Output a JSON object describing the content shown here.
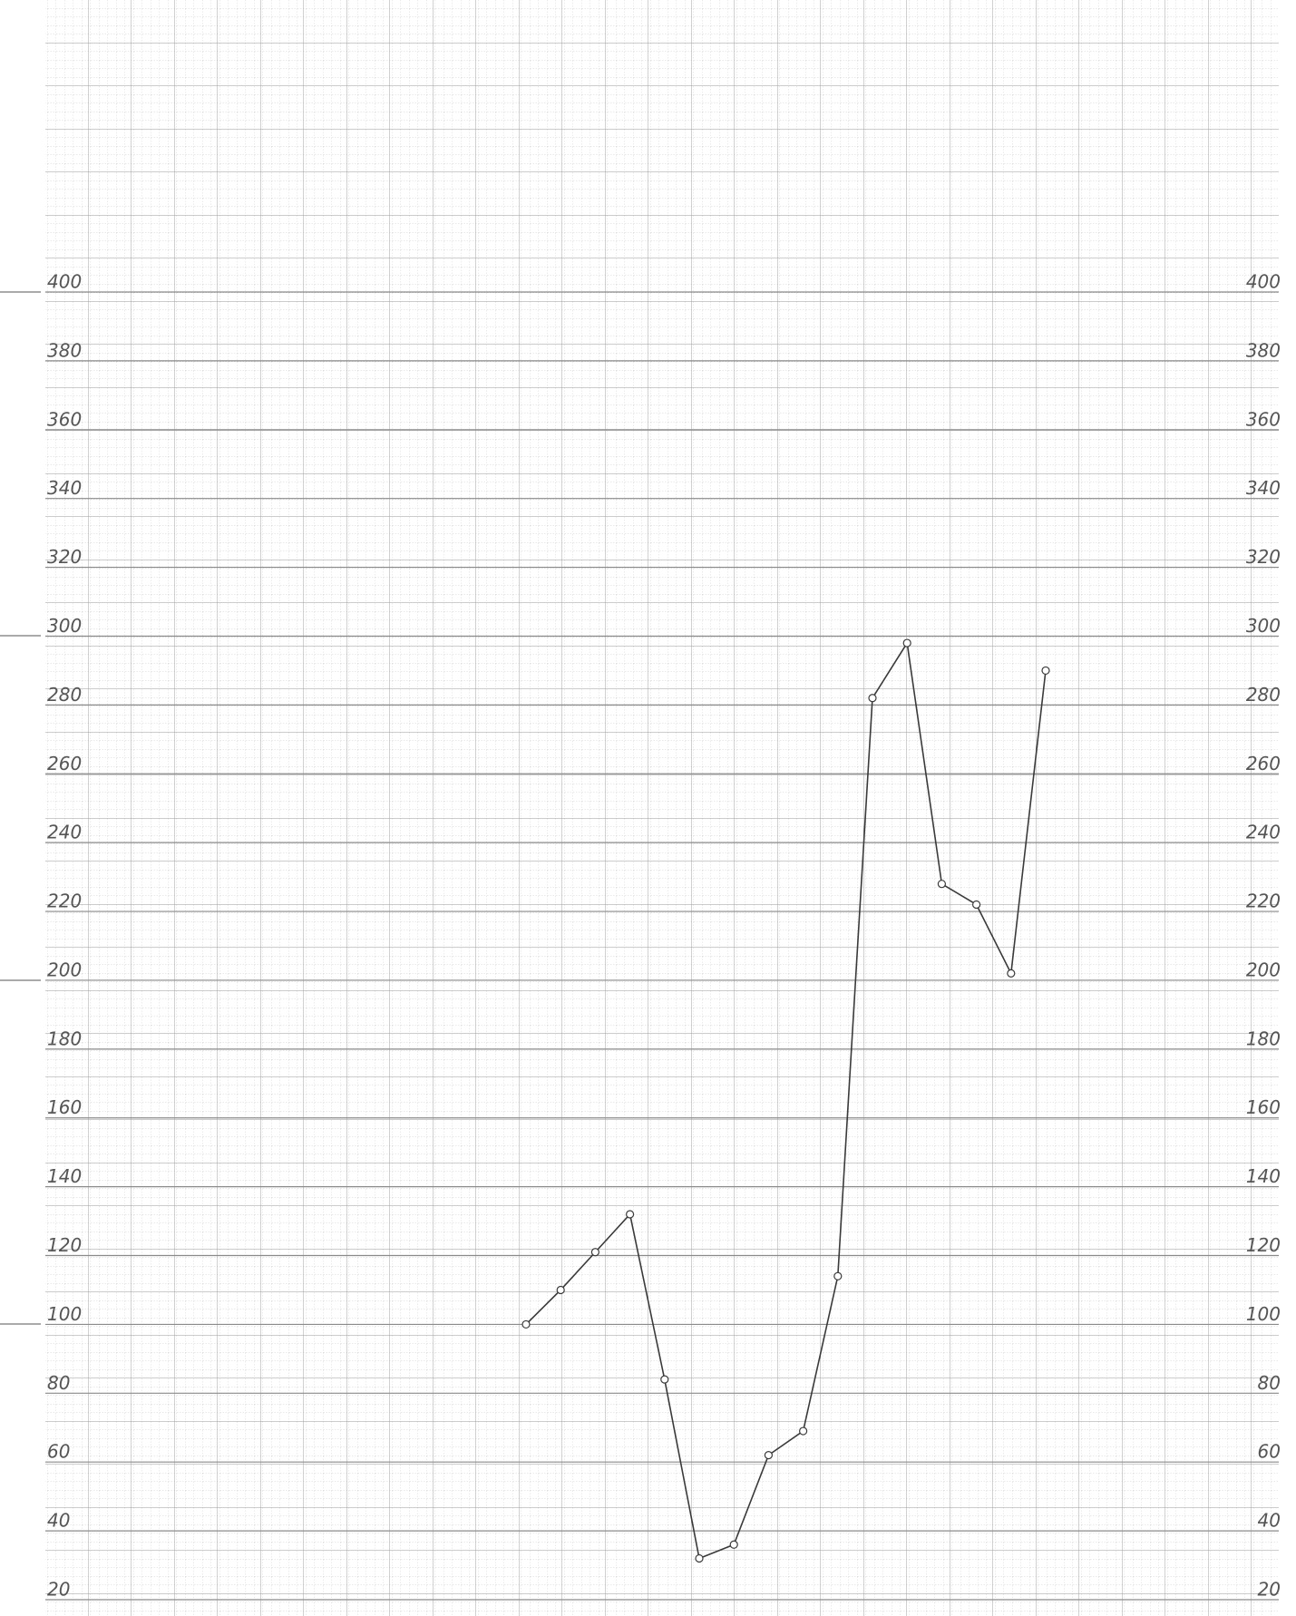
{
  "chart_data": {
    "type": "line",
    "categories": [
      null,
      null,
      null,
      null,
      null,
      null,
      null,
      null,
      null,
      null,
      null,
      null,
      null,
      null,
      null,
      null
    ],
    "series": [
      {
        "color": "#3a3a3a",
        "values": [
          100,
          110,
          121,
          132,
          84,
          32,
          36,
          62,
          69,
          114,
          282,
          298,
          228,
          222,
          202,
          290
        ]
      }
    ],
    "ylim": [
      20,
      400
    ],
    "yticks": [
      20,
      40,
      60,
      80,
      100,
      120,
      140,
      160,
      180,
      200,
      220,
      240,
      260,
      280,
      300,
      320,
      340,
      360,
      380,
      400
    ],
    "grid": true
  }
}
